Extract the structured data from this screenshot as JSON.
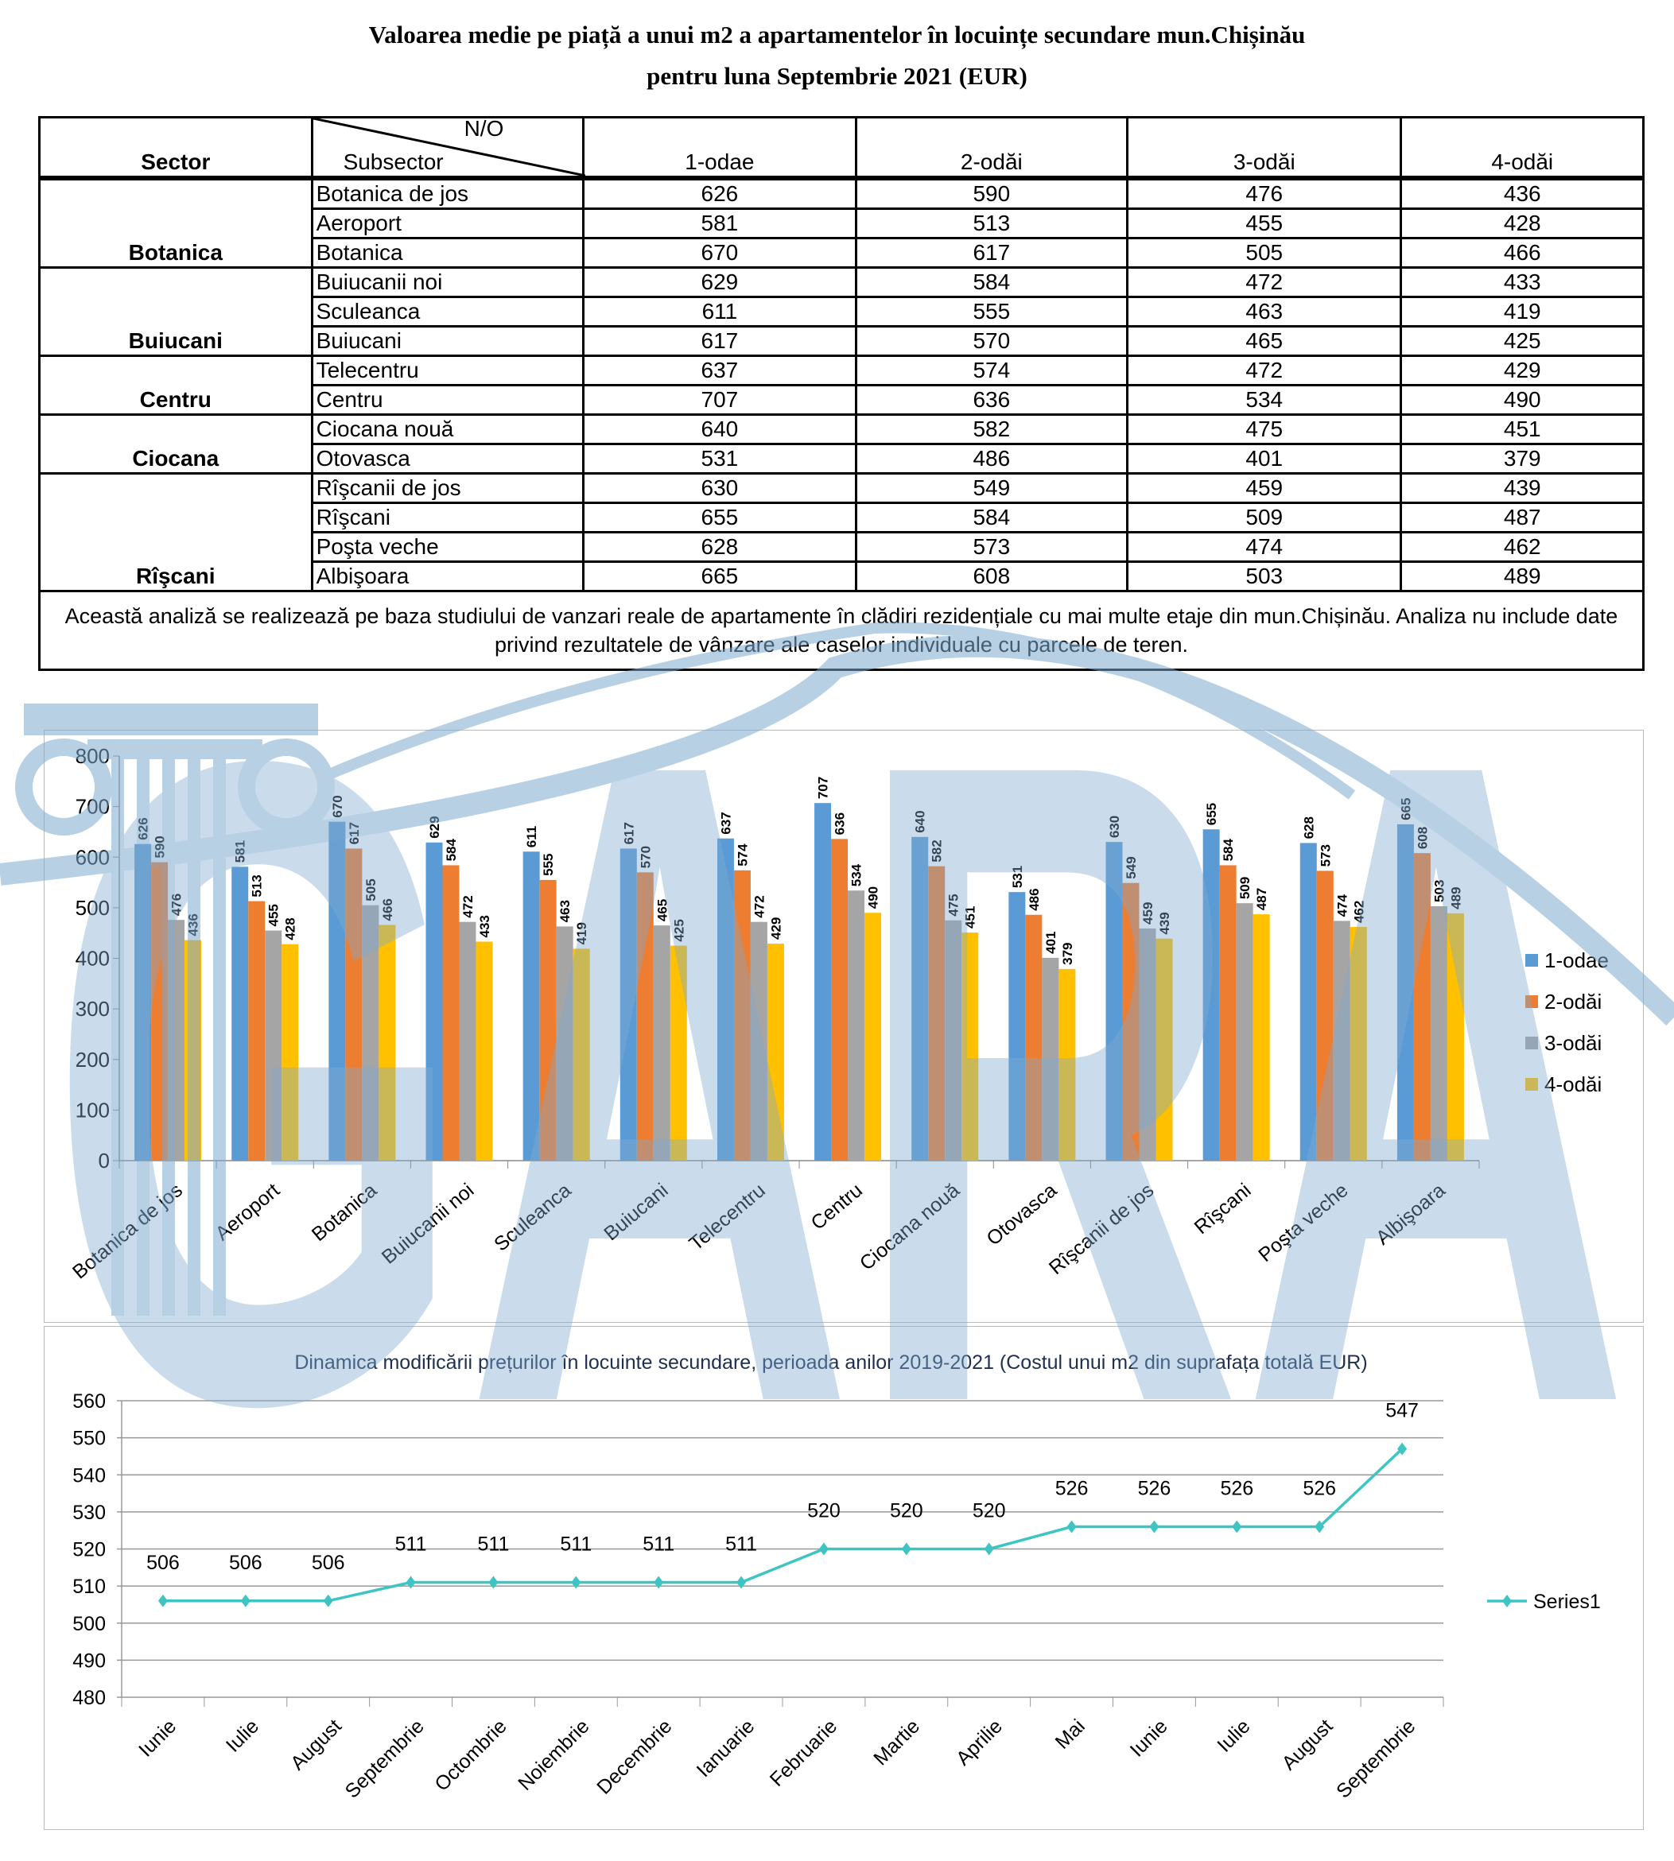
{
  "title_line1": "Valoarea medie pe piață a unui m2 a apartamentelor în locuințe secundare mun.Chișinău",
  "title_line2": "pentru luna Septembrie 2021 (EUR)",
  "table": {
    "header": {
      "sector": "Sector",
      "no": "N/O",
      "subsector": "Subsector",
      "columns": [
        "1-odae",
        "2-odăi",
        "3-odăi",
        "4-odăi"
      ]
    },
    "sectors": [
      {
        "name": "Botanica",
        "subsectors": [
          {
            "name": "Botanica de jos",
            "values": [
              626,
              590,
              476,
              436
            ]
          },
          {
            "name": "Aeroport",
            "values": [
              581,
              513,
              455,
              428
            ]
          },
          {
            "name": "Botanica",
            "values": [
              670,
              617,
              505,
              466
            ]
          }
        ]
      },
      {
        "name": "Buiucani",
        "subsectors": [
          {
            "name": "Buiucanii noi",
            "values": [
              629,
              584,
              472,
              433
            ]
          },
          {
            "name": "Sculeanca",
            "values": [
              611,
              555,
              463,
              419
            ]
          },
          {
            "name": "Buiucani",
            "values": [
              617,
              570,
              465,
              425
            ]
          }
        ]
      },
      {
        "name": "Centru",
        "subsectors": [
          {
            "name": "Telecentru",
            "values": [
              637,
              574,
              472,
              429
            ]
          },
          {
            "name": "Centru",
            "values": [
              707,
              636,
              534,
              490
            ]
          }
        ]
      },
      {
        "name": "Ciocana",
        "subsectors": [
          {
            "name": "Ciocana nouă",
            "values": [
              640,
              582,
              475,
              451
            ]
          },
          {
            "name": "Otovasca",
            "values": [
              531,
              486,
              401,
              379
            ]
          }
        ]
      },
      {
        "name": "Rîşcani",
        "subsectors": [
          {
            "name": "Rîşcanii de jos",
            "values": [
              630,
              549,
              459,
              439
            ]
          },
          {
            "name": "Rîşcani",
            "values": [
              655,
              584,
              509,
              487
            ]
          },
          {
            "name": "Poşta veche",
            "values": [
              628,
              573,
              474,
              462
            ]
          },
          {
            "name": "Albişoara",
            "values": [
              665,
              608,
              503,
              489
            ]
          }
        ]
      }
    ],
    "note": "Această analiză se realizează pe baza studiului de vanzari reale de apartamente în clădiri rezidențiale cu mai multe etaje din mun.Chișinău. Analiza nu include date privind rezultatele de vânzare ale caselor individuale cu parcele de teren."
  },
  "chart_data": [
    {
      "type": "bar",
      "title": "",
      "categories": [
        "Botanica de jos",
        "Aeroport",
        "Botanica",
        "Buiucanii noi",
        "Sculeanca",
        "Buiucani",
        "Telecentru",
        "Centru",
        "Ciocana nouă",
        "Otovasca",
        "Rîşcanii de jos",
        "Rîşcani",
        "Poşta veche",
        "Albişoara"
      ],
      "series": [
        {
          "name": "1-odae",
          "color": "#5B9BD5",
          "values": [
            626,
            581,
            670,
            629,
            611,
            617,
            637,
            707,
            640,
            531,
            630,
            655,
            628,
            665
          ]
        },
        {
          "name": "2-odăi",
          "color": "#ED7D31",
          "values": [
            590,
            513,
            617,
            584,
            555,
            570,
            574,
            636,
            582,
            486,
            549,
            584,
            573,
            608
          ]
        },
        {
          "name": "3-odăi",
          "color": "#A5A5A5",
          "values": [
            476,
            455,
            505,
            472,
            463,
            465,
            472,
            534,
            475,
            401,
            459,
            509,
            474,
            503
          ]
        },
        {
          "name": "4-odăi",
          "color": "#FFC000",
          "values": [
            436,
            428,
            466,
            433,
            419,
            425,
            429,
            490,
            451,
            379,
            439,
            487,
            462,
            489
          ]
        }
      ],
      "ylim": [
        0,
        800
      ],
      "yticks": [
        0,
        100,
        200,
        300,
        400,
        500,
        600,
        700,
        800
      ],
      "grid": false,
      "legend": "right",
      "data_labels": true
    },
    {
      "type": "line",
      "title": "Dinamica modificării prețurilor în locuinte secundare, perioada anilor 2019-2021 (Costul unui m2 din suprafața totală EUR)",
      "categories": [
        "Iunie",
        "Iulie",
        "August",
        "Septembrie",
        "Octombrie",
        "Noiembrie",
        "Decembrie",
        "Ianuarie",
        "Februarie",
        "Martie",
        "Aprilie",
        "Mai",
        "Iunie",
        "Iulie",
        "August",
        "Septembrie"
      ],
      "series": [
        {
          "name": "Series1",
          "color": "#3FC4C4",
          "values": [
            506,
            506,
            506,
            511,
            511,
            511,
            511,
            511,
            520,
            520,
            520,
            526,
            526,
            526,
            526,
            547
          ]
        }
      ],
      "ylim": [
        480,
        560
      ],
      "yticks": [
        480,
        490,
        500,
        510,
        520,
        530,
        540,
        550,
        560
      ],
      "grid": true,
      "legend": "right",
      "data_labels": true
    }
  ],
  "watermark_color": "#7FAACF"
}
